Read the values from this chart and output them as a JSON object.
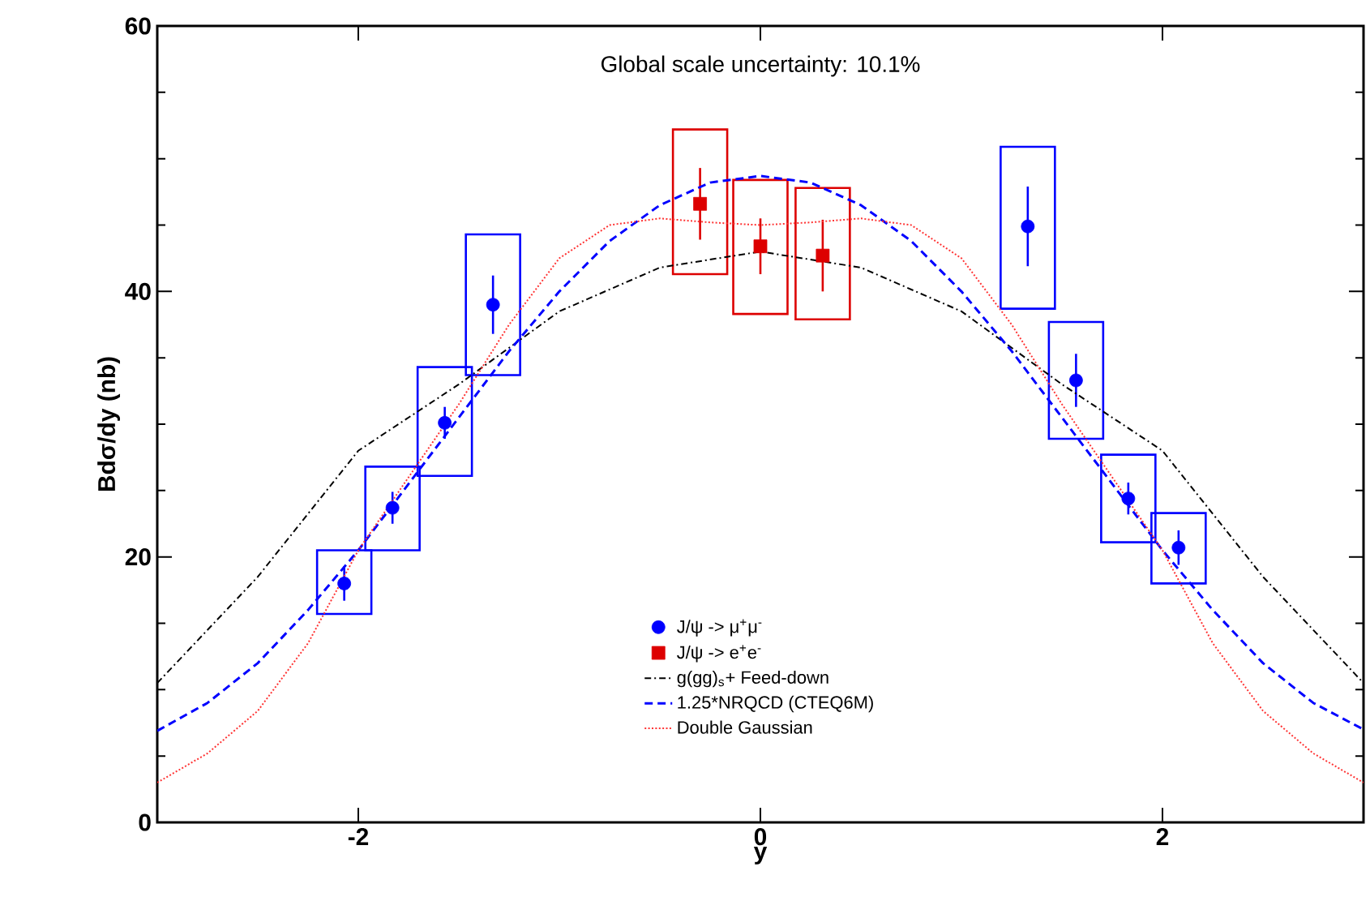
{
  "chart_data": {
    "type": "scatter",
    "xlabel": "y",
    "ylabel": "Bdσ/dy (nb)",
    "annotations": [
      "Global scale uncertainty: 10.1%"
    ],
    "xlim": [
      -3,
      3
    ],
    "ylim": [
      0,
      60
    ],
    "xticks": [
      -2,
      0,
      2
    ],
    "yticks": [
      0,
      20,
      40,
      60
    ],
    "legend": "bottom",
    "series": [
      {
        "type": "bar",
        "color": "#0000ff",
        "x": [
          -2.07,
          -1.83,
          -1.57,
          -1.33,
          1.33,
          1.57,
          1.83,
          2.08
        ],
        "base": [
          15.7,
          20.5,
          26.1,
          33.7,
          38.7,
          28.9,
          21.1,
          18.0
        ],
        "values": [
          4.8,
          6.3,
          8.2,
          10.6,
          12.2,
          8.8,
          6.6,
          5.3
        ]
      },
      {
        "type": "bar",
        "color": "#dd0000",
        "x": [
          -0.3,
          0.0,
          0.31
        ],
        "base": [
          41.3,
          38.3,
          37.9
        ],
        "values": [
          10.9,
          10.1,
          9.9
        ]
      },
      {
        "name": "J/ψ -> μ$^{+}$μ$^{-}$",
        "marker": "circle",
        "color": "#0000ff",
        "x": [
          -2.07,
          -1.83,
          -1.57,
          -1.33,
          1.33,
          1.57,
          1.83,
          2.08
        ],
        "values": [
          18.0,
          23.7,
          30.1,
          39.0,
          44.9,
          33.3,
          24.4,
          20.7
        ],
        "errors": [
          1.3,
          1.2,
          1.2,
          2.2,
          3.0,
          2.0,
          1.2,
          1.3
        ]
      },
      {
        "name": "J/ψ -> e$^{+}$e$^{-}$",
        "marker": "square",
        "color": "#dd0000",
        "x": [
          -0.3,
          0.0,
          0.31
        ],
        "values": [
          46.6,
          43.4,
          42.7
        ],
        "errors": [
          2.7,
          2.1,
          2.7
        ]
      },
      {
        "name": "g(gg)$_{s}$+ Feed-down",
        "type": "line",
        "line_style": "dashdot",
        "color": "#000000",
        "x": [
          -3,
          -2.5,
          -2,
          -1.5,
          -1,
          -0.5,
          0,
          0.5,
          1,
          1.5,
          2,
          2.5,
          3
        ],
        "values": [
          10.5,
          18.5,
          28,
          33,
          38.5,
          41.8,
          43,
          41.8,
          38.5,
          33,
          28,
          18.5,
          10.5
        ]
      },
      {
        "name": "1.25*NRQCD (CTEQ6M)",
        "type": "line",
        "line_style": "dashed",
        "color": "#0000ff",
        "x": [
          -3,
          -2.75,
          -2.5,
          -2.25,
          -2,
          -1.75,
          -1.5,
          -1.25,
          -1,
          -0.75,
          -0.5,
          -0.25,
          0,
          0.25,
          0.5,
          0.75,
          1,
          1.25,
          1.5,
          1.75,
          2,
          2.25,
          2.5,
          2.75,
          3
        ],
        "values": [
          6.9,
          9,
          12,
          16,
          20.5,
          25.5,
          30.5,
          35.5,
          40,
          43.8,
          46.5,
          48.2,
          48.7,
          48.2,
          46.5,
          43.8,
          40,
          35.5,
          30.5,
          25.5,
          20.5,
          16,
          12,
          9,
          7.0
        ]
      },
      {
        "name": "Double Gaussian",
        "type": "line",
        "line_style": "dotted",
        "color": "#ff3333",
        "x": [
          -3,
          -2.75,
          -2.5,
          -2.25,
          -2,
          -1.75,
          -1.5,
          -1.25,
          -1,
          -0.75,
          -0.5,
          -0.25,
          0,
          0.25,
          0.5,
          0.75,
          1,
          1.25,
          1.5,
          1.75,
          2,
          2.25,
          2.5,
          2.75,
          3
        ],
        "values": [
          3,
          5.2,
          8.4,
          13.5,
          20.5,
          26,
          31.5,
          37.5,
          42.5,
          45,
          45.5,
          45.2,
          45,
          45.2,
          45.5,
          45,
          42.5,
          37.5,
          31.5,
          26,
          20.5,
          13.5,
          8.4,
          5.2,
          3.0
        ]
      }
    ]
  }
}
